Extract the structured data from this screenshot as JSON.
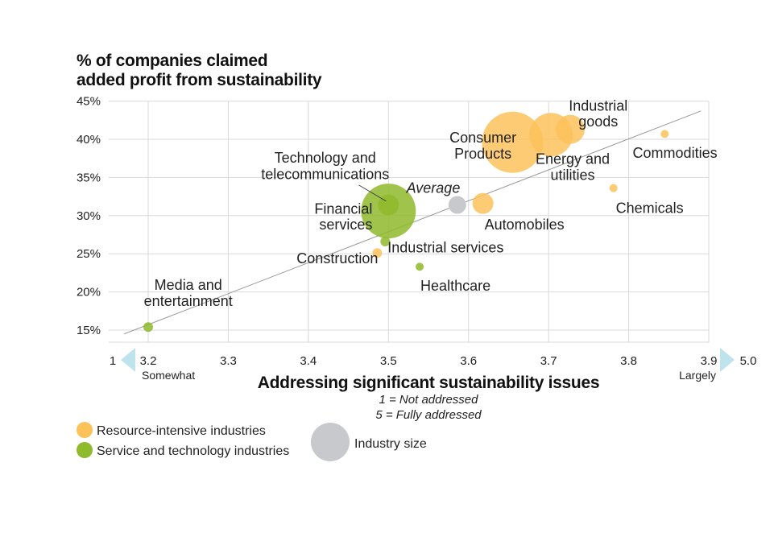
{
  "colors": {
    "resource": "#fcc25a",
    "service": "#8fba2c",
    "average": "#c7c9cc",
    "grid": "#d9d9d9",
    "arrow": "#bfe3ec"
  },
  "chart_data": {
    "type": "scatter",
    "title": [
      "% of companies claimed",
      "added profit from sustainability"
    ],
    "xlabel": "Addressing significant sustainability issues",
    "xnotes": [
      "1 = Not addressed",
      "5 = Fully addressed"
    ],
    "x_ticks": [
      "3.2",
      "3.3",
      "3.4",
      "3.5",
      "3.6",
      "3.7",
      "3.8",
      "3.9"
    ],
    "x_ticks_values": [
      3.2,
      3.3,
      3.4,
      3.5,
      3.6,
      3.7,
      3.8,
      3.9
    ],
    "x_end_left": {
      "value": "1",
      "label": "Somewhat"
    },
    "x_end_right": {
      "value": "5.0",
      "label": "Largely"
    },
    "xlim": [
      3.18,
      3.9
    ],
    "y_ticks": [
      "15%",
      "20%",
      "25%",
      "30%",
      "35%",
      "40%",
      "45%"
    ],
    "y_ticks_values": [
      15,
      20,
      25,
      30,
      35,
      40,
      45
    ],
    "ylim": [
      13,
      45
    ],
    "grid": true,
    "trendline": {
      "x": [
        3.17,
        3.89
      ],
      "y": [
        14.5,
        43.7
      ]
    },
    "points": [
      {
        "label": [
          "Media and",
          "entertainment"
        ],
        "x": 3.2,
        "y": 15.4,
        "group": "service",
        "size": 6,
        "label_anchor": "middle",
        "lx": 3.25,
        "ly": [
          20.9,
          18.8
        ]
      },
      {
        "label": [
          "Construction"
        ],
        "x": 3.486,
        "y": 25.1,
        "group": "resource",
        "size": 6,
        "label_anchor": "end",
        "lx": 3.487,
        "ly": [
          24.4
        ]
      },
      {
        "label": [
          "Industrial services"
        ],
        "x": 3.496,
        "y": 26.6,
        "group": "service",
        "size": 6,
        "label_anchor": "start",
        "lx": 3.499,
        "ly": [
          25.8
        ]
      },
      {
        "label": [
          "Healthcare"
        ],
        "x": 3.539,
        "y": 23.3,
        "group": "service",
        "size": 5,
        "label_anchor": "start",
        "lx": 3.54,
        "ly": [
          20.8
        ]
      },
      {
        "label": [
          "Financial",
          "services"
        ],
        "x": 3.5,
        "y": 30.6,
        "group": "service",
        "size": 34,
        "label_anchor": "end",
        "lx": 3.48,
        "ly": [
          30.9,
          28.8
        ]
      },
      {
        "label": [
          "Technology and",
          "telecommunications"
        ],
        "x": 3.5,
        "y": 31.4,
        "group": "service",
        "size": 13,
        "label_anchor": "middle",
        "lx": 3.421,
        "ly": [
          37.6,
          35.4
        ]
      },
      {
        "label": [
          "Average"
        ],
        "x": 3.586,
        "y": 31.4,
        "group": "average",
        "size": 11,
        "label_anchor": "middle",
        "lx": 3.556,
        "ly": [
          33.6
        ],
        "italic": true
      },
      {
        "label": [
          "Automobiles"
        ],
        "x": 3.618,
        "y": 31.6,
        "group": "resource",
        "size": 13,
        "label_anchor": "start",
        "lx": 3.62,
        "ly": [
          28.8
        ]
      },
      {
        "label": [
          "Consumer",
          "Products"
        ],
        "x": 3.655,
        "y": 39.6,
        "group": "resource",
        "size": 38,
        "label_anchor": "middle",
        "lx": 3.618,
        "ly": [
          40.2,
          38.1
        ]
      },
      {
        "label": [
          "Energy and",
          "utilities"
        ],
        "x": 3.703,
        "y": 40.6,
        "group": "resource",
        "size": 27,
        "label_anchor": "middle",
        "lx": 3.73,
        "ly": [
          37.4,
          35.3
        ]
      },
      {
        "label": [
          "Industrial",
          "goods"
        ],
        "x": 3.727,
        "y": 41.3,
        "group": "resource",
        "size": 18,
        "label_anchor": "middle",
        "lx": 3.762,
        "ly": [
          44.4,
          42.3
        ]
      },
      {
        "label": [
          "Chemicals"
        ],
        "x": 3.781,
        "y": 33.6,
        "group": "resource",
        "size": 5,
        "label_anchor": "start",
        "lx": 3.784,
        "ly": [
          31.0
        ]
      },
      {
        "label": [
          "Commodities"
        ],
        "x": 3.845,
        "y": 40.7,
        "group": "resource",
        "size": 5,
        "label_anchor": "start",
        "lx": 3.805,
        "ly": [
          38.2
        ]
      }
    ],
    "legend": [
      {
        "label": "Resource-intensive industries",
        "group": "resource"
      },
      {
        "label": "Service and technology industries",
        "group": "service"
      },
      {
        "label": "Industry size",
        "group": "average"
      }
    ]
  }
}
